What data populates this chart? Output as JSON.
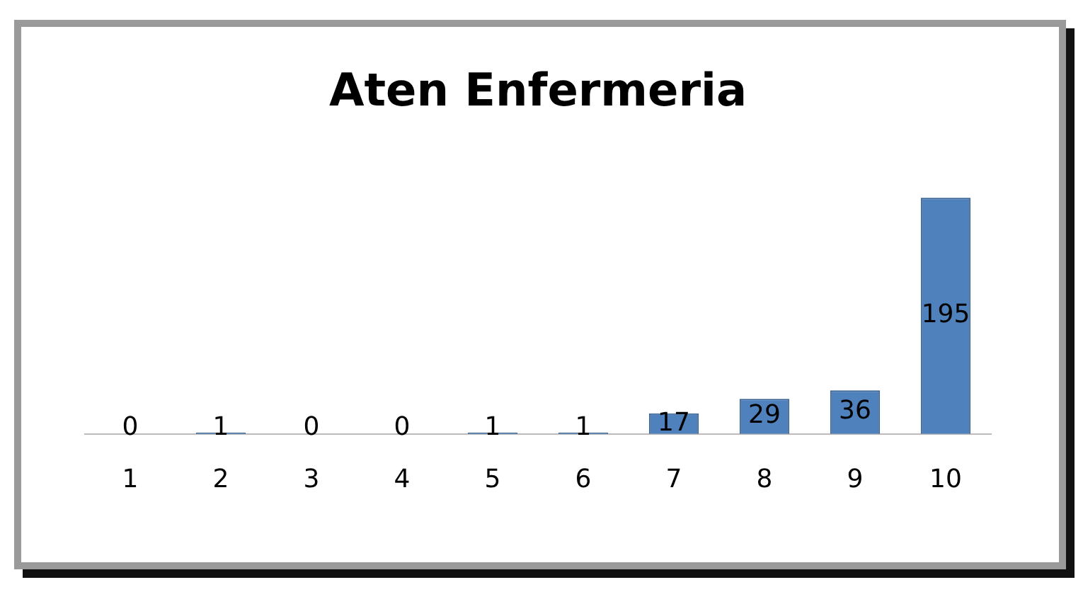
{
  "chart_data": {
    "type": "bar",
    "title": "Aten Enfermeria",
    "categories": [
      "1",
      "2",
      "3",
      "4",
      "5",
      "6",
      "7",
      "8",
      "9",
      "10"
    ],
    "values": [
      0,
      1,
      0,
      0,
      1,
      1,
      17,
      29,
      36,
      195
    ],
    "color": "#4f81bd",
    "data_labels": true,
    "grid": false,
    "legend": false,
    "tick_labels": "x"
  }
}
